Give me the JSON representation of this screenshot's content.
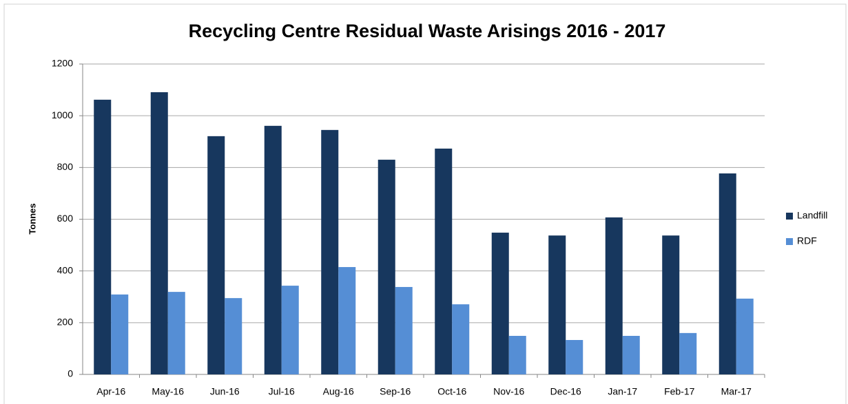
{
  "chart_data": {
    "type": "bar",
    "title": "Recycling Centre Residual Waste Arisings 2016 - 2017",
    "y_label": "Tonnes",
    "categories": [
      "Apr-16",
      "May-16",
      "Jun-16",
      "Jul-16",
      "Aug-16",
      "Sep-16",
      "Oct-16",
      "Nov-16",
      "Dec-16",
      "Jan-17",
      "Feb-17",
      "Mar-17"
    ],
    "series": [
      {
        "name": "Landfill",
        "color": "#17375e",
        "values": [
          1062,
          1091,
          921,
          961,
          945,
          830,
          873,
          548,
          537,
          607,
          537,
          777
        ]
      },
      {
        "name": "RDF",
        "color": "#558ed5",
        "values": [
          309,
          319,
          295,
          343,
          415,
          338,
          271,
          149,
          133,
          149,
          160,
          293
        ]
      }
    ],
    "ylim": [
      0,
      1200
    ],
    "yticks": [
      0,
      200,
      400,
      600,
      800,
      1000,
      1200
    ],
    "grid": true,
    "legend": "right"
  }
}
